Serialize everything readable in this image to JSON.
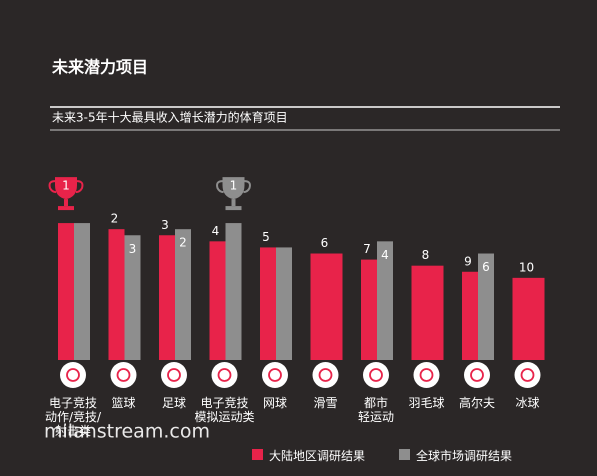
{
  "chart_data": {
    "type": "bar",
    "title": "未来潜力项目",
    "subtitle": "未来3-5年十大最具收入增长潜力的体育项目",
    "categories": [
      "电子竞技\n动作/竞技/\n射击类",
      "篮球",
      "足球",
      "电子竞技\n模拟运动类",
      "网球",
      "滑雪",
      "都市\n轻运动",
      "羽毛球",
      "高尔夫",
      "冰球"
    ],
    "series": [
      {
        "name": "大陆地区调研结果",
        "color": "#e8234a",
        "values": [
          1,
          2,
          3,
          4,
          5,
          6,
          7,
          8,
          9,
          10
        ]
      },
      {
        "name": "全球市场调研结果",
        "color": "#8e8e8e",
        "values": [
          1,
          3,
          2,
          1,
          5,
          null,
          4,
          null,
          6,
          null
        ],
        "value_labels": [
          null,
          "3",
          "2",
          "1",
          null,
          null,
          "4",
          null,
          "6",
          null
        ]
      }
    ],
    "ylim": [
      23.5,
      0
    ],
    "watermark": "milanstream.com"
  }
}
